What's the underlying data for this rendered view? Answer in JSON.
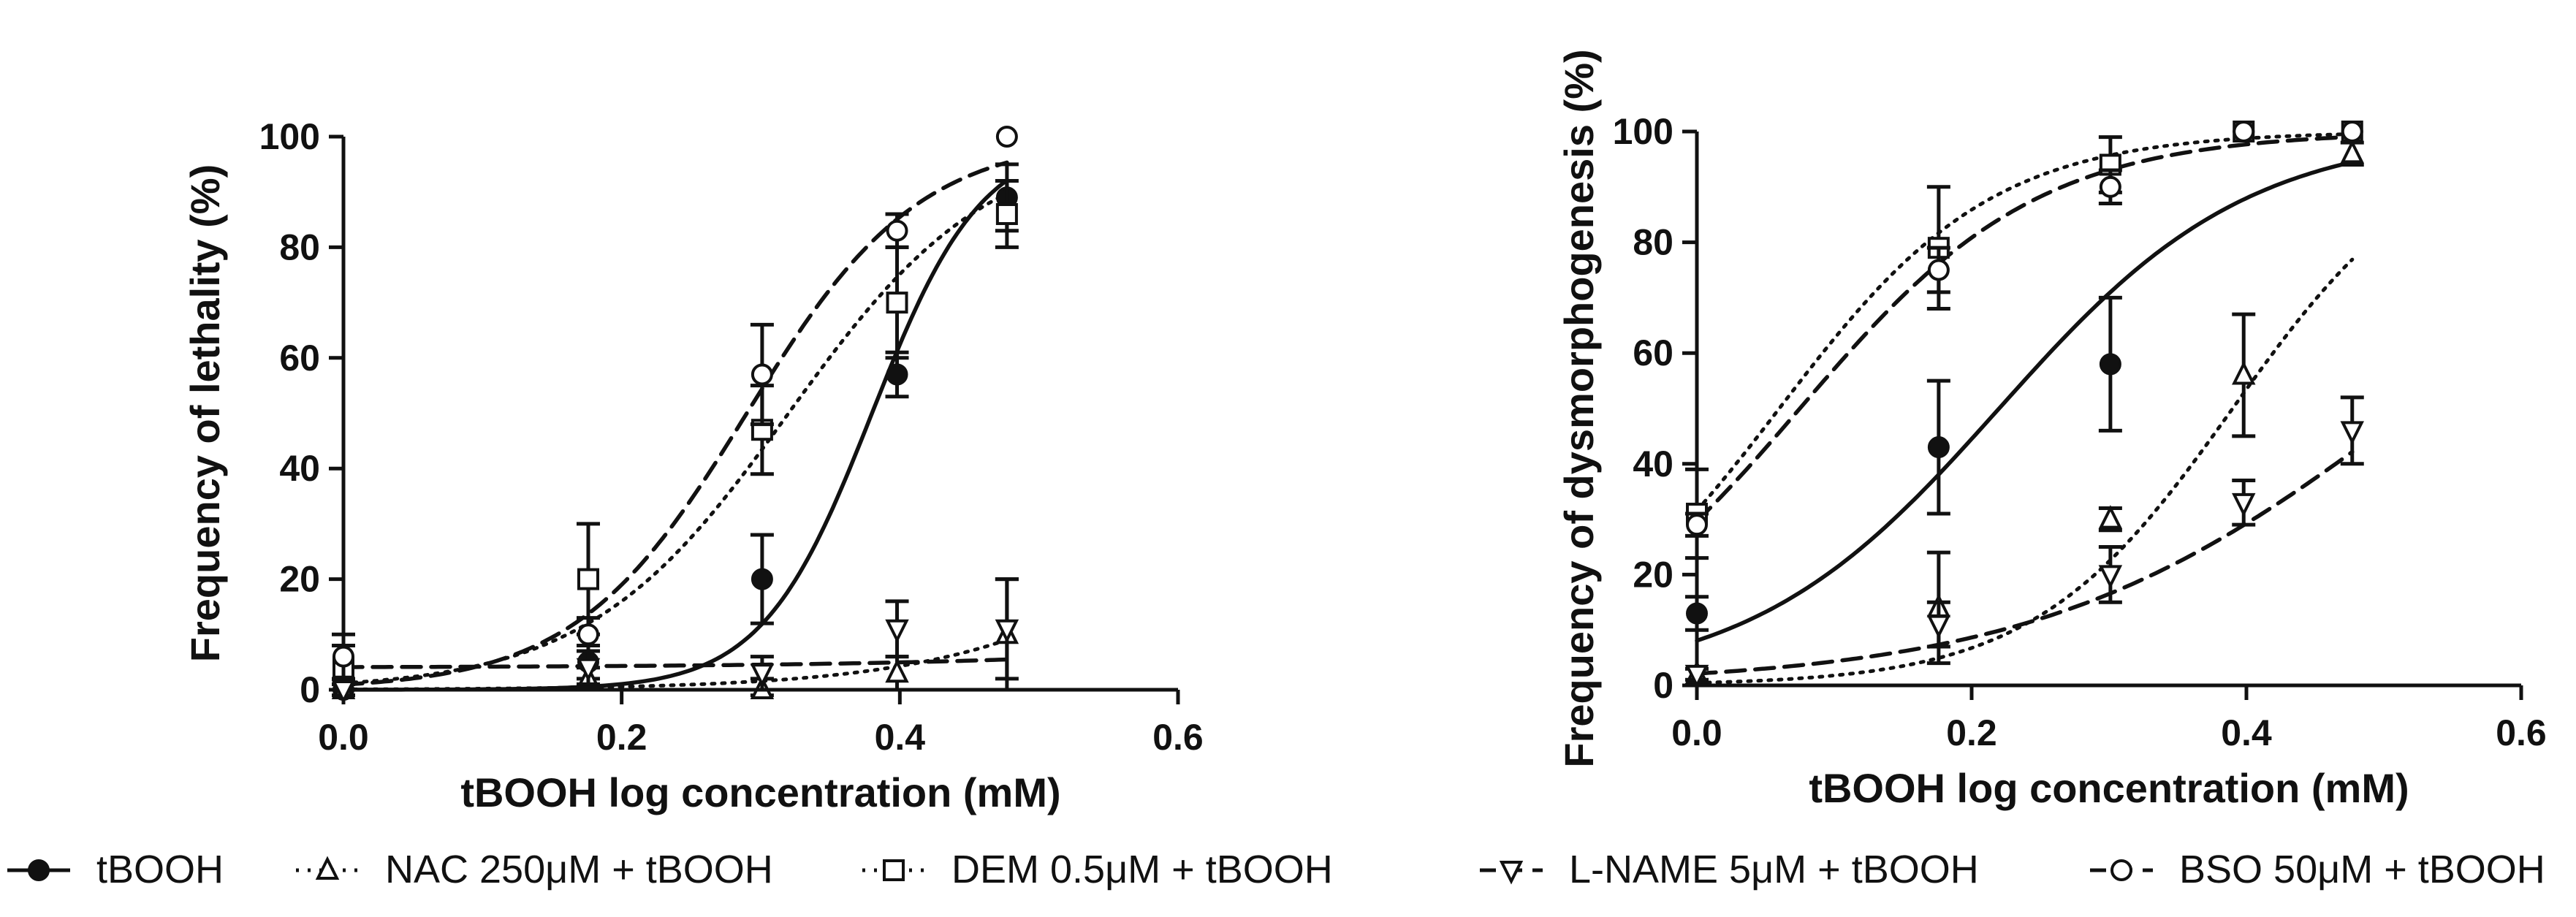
{
  "chart_data": [
    {
      "type": "scatter",
      "id": "lethality",
      "title": "",
      "xlabel": "tBOOH log concentration (mM)",
      "ylabel": "Frequency of lethality (%)",
      "xlim": [
        0.0,
        0.6
      ],
      "ylim": [
        0,
        100
      ],
      "xticks": [
        0.0,
        0.2,
        0.4,
        0.6
      ],
      "xtick_labels": [
        "0.0",
        "0.2",
        "0.4",
        "0.6"
      ],
      "yticks": [
        0,
        20,
        40,
        60,
        80,
        100
      ],
      "ytick_labels": [
        "0",
        "20",
        "40",
        "60",
        "80",
        "100"
      ],
      "grid": false,
      "x": [
        0.0,
        0.176,
        0.301,
        0.398,
        0.477
      ],
      "series": [
        {
          "name": "tBOOH",
          "key": "tbooh",
          "values": [
            0,
            5,
            20,
            57,
            89
          ],
          "errors": [
            1,
            3,
            8,
            4,
            6
          ],
          "fit_bottom": 0,
          "fit_top": 100,
          "fit_logec50": 0.38,
          "fit_hill": 11
        },
        {
          "name": "NAC 250μM + tBOOH",
          "key": "nac",
          "values": [
            0,
            2,
            0,
            3,
            10
          ],
          "errors": [
            1,
            2,
            2,
            3,
            10
          ],
          "fit_bottom": 0,
          "fit_top": 100,
          "fit_logec50": 0.7,
          "fit_hill": 4.5
        },
        {
          "name": "DEM 0.5μM + tBOOH",
          "key": "dem",
          "values": [
            4,
            20,
            47,
            70,
            86
          ],
          "errors": [
            4,
            10,
            8,
            10,
            6
          ],
          "fit_bottom": 0,
          "fit_top": 100,
          "fit_logec50": 0.32,
          "fit_hill": 6
        },
        {
          "name": "L-NAME 5μM + tBOOH",
          "key": "lname",
          "values": [
            0,
            4,
            3,
            11,
            11
          ],
          "errors": [
            1,
            3,
            3,
            5,
            9
          ],
          "fit_bottom": 4,
          "fit_top": 100,
          "fit_logec50": 1.2,
          "fit_hill": 2.5
        },
        {
          "name": "BSO 50μM + tBOOH",
          "key": "bso",
          "values": [
            6,
            10,
            57,
            83,
            100
          ],
          "errors": [
            4,
            3,
            9,
            3,
            0
          ],
          "fit_bottom": 0,
          "fit_top": 100,
          "fit_logec50": 0.29,
          "fit_hill": 7
        }
      ]
    },
    {
      "type": "scatter",
      "id": "dysmorphogenesis",
      "title": "",
      "xlabel": "tBOOH log concentration (mM)",
      "ylabel": "Frequency of dysmorphogenesis (%)",
      "xlim": [
        0.0,
        0.6
      ],
      "ylim": [
        0,
        100
      ],
      "xticks": [
        0.0,
        0.2,
        0.4,
        0.6
      ],
      "xtick_labels": [
        "0.0",
        "0.2",
        "0.4",
        "0.6"
      ],
      "yticks": [
        0,
        20,
        40,
        60,
        80,
        100
      ],
      "ytick_labels": [
        "0",
        "20",
        "40",
        "60",
        "80",
        "100"
      ],
      "grid": false,
      "x": [
        0.0,
        0.176,
        0.301,
        0.398,
        0.477
      ],
      "series": [
        {
          "name": "tBOOH",
          "key": "tbooh",
          "values": [
            13,
            43,
            58,
            100,
            100
          ],
          "errors": [
            3,
            12,
            12,
            0,
            0
          ],
          "fit_bottom": 0,
          "fit_top": 100,
          "fit_logec50": 0.22,
          "fit_hill": 4.8
        },
        {
          "name": "NAC 250μM + tBOOH",
          "key": "nac",
          "values": [
            2,
            14,
            30,
            56,
            96
          ],
          "errors": [
            1,
            10,
            2,
            11,
            2
          ],
          "fit_bottom": 0,
          "fit_top": 100,
          "fit_logec50": 0.39,
          "fit_hill": 6
        },
        {
          "name": "DEM 0.5μM + tBOOH",
          "key": "dem",
          "values": [
            31,
            79,
            94,
            100,
            100
          ],
          "errors": [
            8,
            11,
            5,
            0,
            0
          ],
          "fit_bottom": 0,
          "fit_top": 100,
          "fit_logec50": 0.06,
          "fit_hill": 5.6
        },
        {
          "name": "L-NAME 5μM + tBOOH",
          "key": "lname",
          "values": [
            2,
            11,
            20,
            33,
            46
          ],
          "errors": [
            1,
            4,
            5,
            4,
            6
          ],
          "fit_bottom": 0,
          "fit_top": 100,
          "fit_logec50": 0.52,
          "fit_hill": 3.2
        },
        {
          "name": "BSO 50μM + tBOOH",
          "key": "bso",
          "values": [
            29,
            75,
            90,
            100,
            100
          ],
          "errors": [
            2,
            4,
            3,
            0,
            0
          ],
          "fit_bottom": 0,
          "fit_top": 100,
          "fit_logec50": 0.075,
          "fit_hill": 5
        }
      ]
    }
  ],
  "legend": {
    "placement": "bottom",
    "items": [
      {
        "key": "tbooh",
        "label": "tBOOH"
      },
      {
        "key": "nac",
        "label": "NAC 250μM + tBOOH"
      },
      {
        "key": "dem",
        "label": "DEM 0.5μM + tBOOH"
      },
      {
        "key": "lname",
        "label": "L-NAME 5μM + tBOOH"
      },
      {
        "key": "bso",
        "label": "BSO 50μM + tBOOH"
      }
    ]
  },
  "styles": {
    "tbooh": {
      "line": "solid",
      "marker": "filled-circle",
      "color": "#111111"
    },
    "nac": {
      "line": "dotted",
      "marker": "open-triangle-up",
      "color": "#111111"
    },
    "dem": {
      "line": "dotted",
      "marker": "open-square",
      "color": "#111111"
    },
    "lname": {
      "line": "dashed",
      "marker": "open-triangle-down",
      "color": "#111111"
    },
    "bso": {
      "line": "dashed",
      "marker": "open-circle",
      "color": "#111111"
    }
  }
}
